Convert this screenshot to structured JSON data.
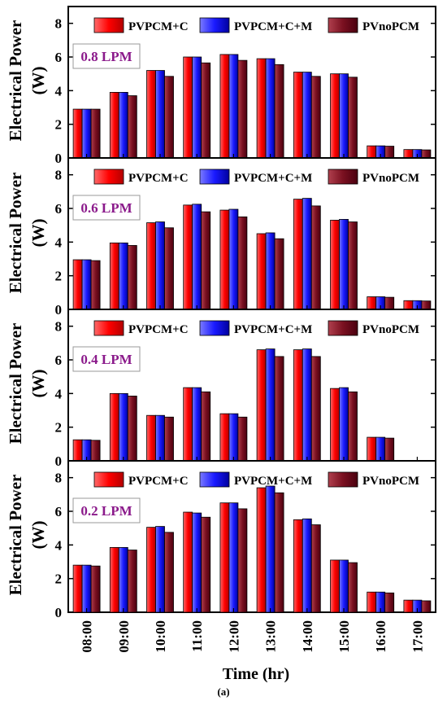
{
  "figure": {
    "caption": "(a)",
    "ylabel_line1": "Electrical Power",
    "ylabel_line2": "(W)",
    "xlabel": "Time (hr)"
  },
  "colors": {
    "PVPCM+C": "#ff0000",
    "PVPCM+C+M": "#1a1aff",
    "PVnoPCM": "#7a1020",
    "flow_label": "#8b1a8b"
  },
  "chart_data": [
    {
      "type": "bar",
      "panel_label": "0.8 LPM",
      "categories": [
        "08:00",
        "09:00",
        "10:00",
        "11:00",
        "12:00",
        "13:00",
        "14:00",
        "15:00",
        "16:00",
        "17:00"
      ],
      "series": [
        {
          "name": "PVPCM+C",
          "values": [
            2.9,
            3.9,
            5.2,
            6.0,
            6.15,
            5.9,
            5.1,
            5.0,
            0.72,
            0.5
          ]
        },
        {
          "name": "PVPCM+C+M",
          "values": [
            2.9,
            3.9,
            5.2,
            6.0,
            6.15,
            5.9,
            5.1,
            5.0,
            0.72,
            0.5
          ]
        },
        {
          "name": "PVnoPCM",
          "values": [
            2.9,
            3.7,
            4.85,
            5.65,
            5.8,
            5.55,
            4.85,
            4.8,
            0.7,
            0.48
          ]
        }
      ],
      "ylim": [
        0,
        9
      ],
      "yticks": [
        0,
        2,
        4,
        6,
        8
      ],
      "legend": "top"
    },
    {
      "type": "bar",
      "panel_label": "0.6 LPM",
      "categories": [
        "08:00",
        "09:00",
        "10:00",
        "11:00",
        "12:00",
        "13:00",
        "14:00",
        "15:00",
        "16:00",
        "17:00"
      ],
      "series": [
        {
          "name": "PVPCM+C",
          "values": [
            2.95,
            3.95,
            5.15,
            6.2,
            5.9,
            4.5,
            6.55,
            5.3,
            0.75,
            0.52
          ]
        },
        {
          "name": "PVPCM+C+M",
          "values": [
            2.95,
            3.95,
            5.2,
            6.25,
            5.95,
            4.55,
            6.6,
            5.35,
            0.75,
            0.52
          ]
        },
        {
          "name": "PVnoPCM",
          "values": [
            2.9,
            3.8,
            4.85,
            5.8,
            5.5,
            4.2,
            6.15,
            5.2,
            0.72,
            0.5
          ]
        }
      ],
      "ylim": [
        0,
        9
      ],
      "yticks": [
        0,
        2,
        4,
        6,
        8
      ],
      "legend": "top"
    },
    {
      "type": "bar",
      "panel_label": "0.4 LPM",
      "categories": [
        "08:00",
        "09:00",
        "10:00",
        "11:00",
        "12:00",
        "13:00",
        "14:00",
        "15:00",
        "16:00",
        "17:00"
      ],
      "series": [
        {
          "name": "PVPCM+C",
          "values": [
            1.25,
            4.0,
            2.7,
            4.35,
            2.8,
            6.6,
            6.6,
            4.3,
            1.4,
            0
          ]
        },
        {
          "name": "PVPCM+C+M",
          "values": [
            1.25,
            4.0,
            2.7,
            4.35,
            2.8,
            6.65,
            6.65,
            4.35,
            1.4,
            0
          ]
        },
        {
          "name": "PVnoPCM",
          "values": [
            1.22,
            3.85,
            2.6,
            4.1,
            2.6,
            6.2,
            6.2,
            4.1,
            1.35,
            0
          ]
        }
      ],
      "ylim": [
        0,
        9
      ],
      "yticks": [
        0,
        2,
        4,
        6,
        8
      ],
      "legend": "top"
    },
    {
      "type": "bar",
      "panel_label": "0.2 LPM",
      "categories": [
        "08:00",
        "09:00",
        "10:00",
        "11:00",
        "12:00",
        "13:00",
        "14:00",
        "15:00",
        "16:00",
        "17:00"
      ],
      "series": [
        {
          "name": "PVPCM+C",
          "values": [
            2.8,
            3.85,
            5.05,
            5.95,
            6.5,
            7.4,
            5.5,
            3.1,
            1.2,
            0.72
          ]
        },
        {
          "name": "PVPCM+C+M",
          "values": [
            2.8,
            3.85,
            5.1,
            5.9,
            6.5,
            7.5,
            5.55,
            3.1,
            1.2,
            0.72
          ]
        },
        {
          "name": "PVnoPCM",
          "values": [
            2.75,
            3.7,
            4.75,
            5.65,
            6.15,
            7.1,
            5.2,
            2.95,
            1.15,
            0.68
          ]
        }
      ],
      "ylim": [
        0,
        9
      ],
      "yticks": [
        0,
        2,
        4,
        6,
        8
      ],
      "legend": "top"
    }
  ]
}
